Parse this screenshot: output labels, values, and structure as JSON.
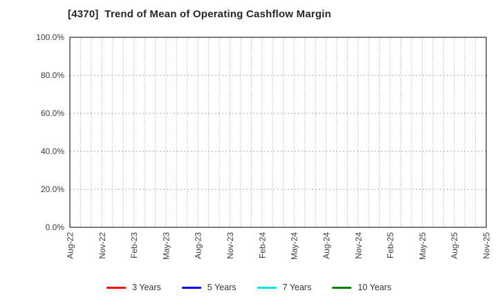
{
  "chart_data": {
    "type": "line",
    "title": "[4370]  Trend of Mean of Operating Cashflow Margin",
    "xlabel": "",
    "ylabel": "",
    "x_tick_labels": [
      "Aug-22",
      "Nov-22",
      "Feb-23",
      "May-23",
      "Aug-23",
      "Nov-23",
      "Feb-24",
      "May-24",
      "Aug-24",
      "Nov-24",
      "Feb-25",
      "May-25",
      "Aug-25",
      "Nov-25"
    ],
    "x_tick_interval_months": 3,
    "x_month_count": 40,
    "y_tick_labels": [
      "0.0%",
      "20.0%",
      "40.0%",
      "60.0%",
      "80.0%",
      "100.0%"
    ],
    "ylim": [
      0,
      100
    ],
    "grid": true,
    "grid_style": "dotted",
    "legend_position": "bottom",
    "plot_area_empty_note": "no data points are visible in the plot area",
    "series": [
      {
        "name": "3 Years",
        "color": "#ff0000",
        "values": []
      },
      {
        "name": "5 Years",
        "color": "#0000ff",
        "values": []
      },
      {
        "name": "7 Years",
        "color": "#00e5e5",
        "values": []
      },
      {
        "name": "10 Years",
        "color": "#008000",
        "values": []
      }
    ],
    "colors": {
      "axis_border": "#262626",
      "gridline": "#a6a6a6",
      "tick_label": "#3d3d3d",
      "title": "#262626",
      "background": "#ffffff"
    }
  }
}
